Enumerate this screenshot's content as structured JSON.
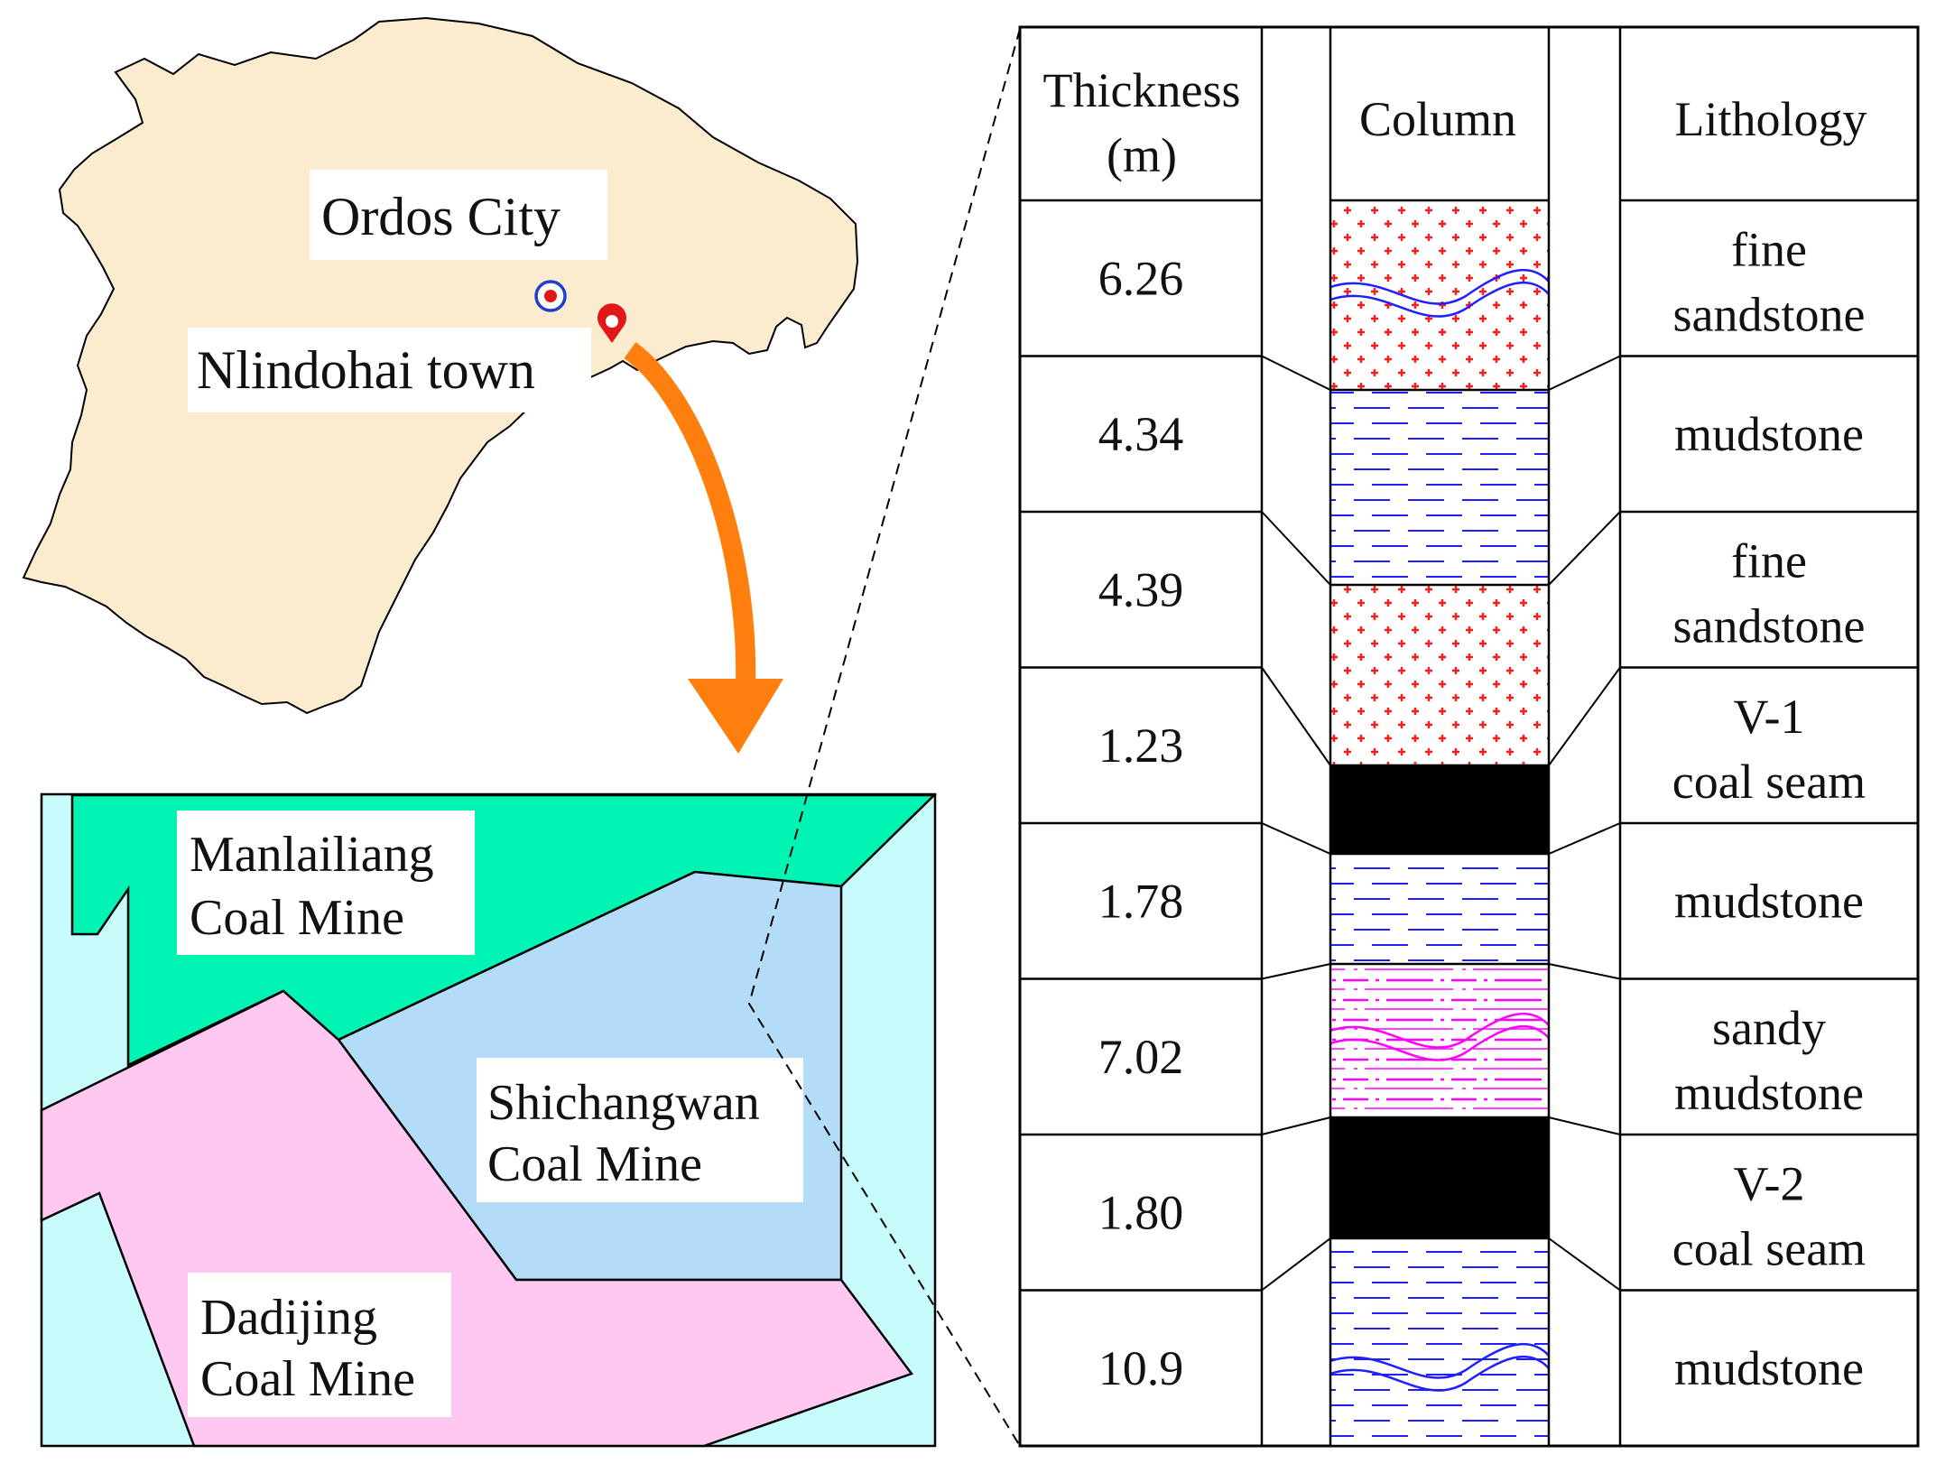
{
  "overview_map": {
    "city_label": "Ordos City",
    "town_label": "Nlindohai town"
  },
  "mine_map": {
    "mines": [
      {
        "line1": "Manlailiang",
        "line2": "Coal Mine",
        "color": "#00f5b4"
      },
      {
        "line1": "Shichangwan",
        "line2": "Coal Mine",
        "color": "#b3dcf9"
      },
      {
        "line1": "Dadijing",
        "line2": "Coal Mine",
        "color": "#ffc8f1"
      }
    ],
    "background_color": "#c8fbfb"
  },
  "strata_column": {
    "headers": {
      "thickness_line1": "Thickness",
      "thickness_line2": "(m)",
      "column": "Column",
      "lithology": "Lithology"
    },
    "layers": [
      {
        "thickness": "6.26",
        "lithology_line1": "fine",
        "lithology_line2": "sandstone",
        "pattern": "fine-sandstone"
      },
      {
        "thickness": "4.34",
        "lithology_line1": "mudstone",
        "lithology_line2": "",
        "pattern": "mudstone"
      },
      {
        "thickness": "4.39",
        "lithology_line1": "fine",
        "lithology_line2": "sandstone",
        "pattern": "fine-sandstone"
      },
      {
        "thickness": "1.23",
        "lithology_line1": "V-1",
        "lithology_line2": "coal seam",
        "pattern": "coal"
      },
      {
        "thickness": "1.78",
        "lithology_line1": "mudstone",
        "lithology_line2": "",
        "pattern": "mudstone"
      },
      {
        "thickness": "7.02",
        "lithology_line1": "sandy",
        "lithology_line2": "mudstone",
        "pattern": "sandy-mudstone"
      },
      {
        "thickness": "1.80",
        "lithology_line1": "V-2",
        "lithology_line2": "coal seam",
        "pattern": "coal"
      },
      {
        "thickness": "10.9",
        "lithology_line1": "mudstone",
        "lithology_line2": "",
        "pattern": "mudstone"
      }
    ]
  },
  "colors": {
    "region_fill": "#fbebcf",
    "arrow": "#ff7f0e",
    "sandstone_dots": "#ff1a1a",
    "mudstone_dash": "#1f1fff",
    "sandy_mudstone": "#ff00ff",
    "coal": "#000000"
  },
  "icons": [
    "city-marker-icon",
    "location-pin-icon"
  ]
}
